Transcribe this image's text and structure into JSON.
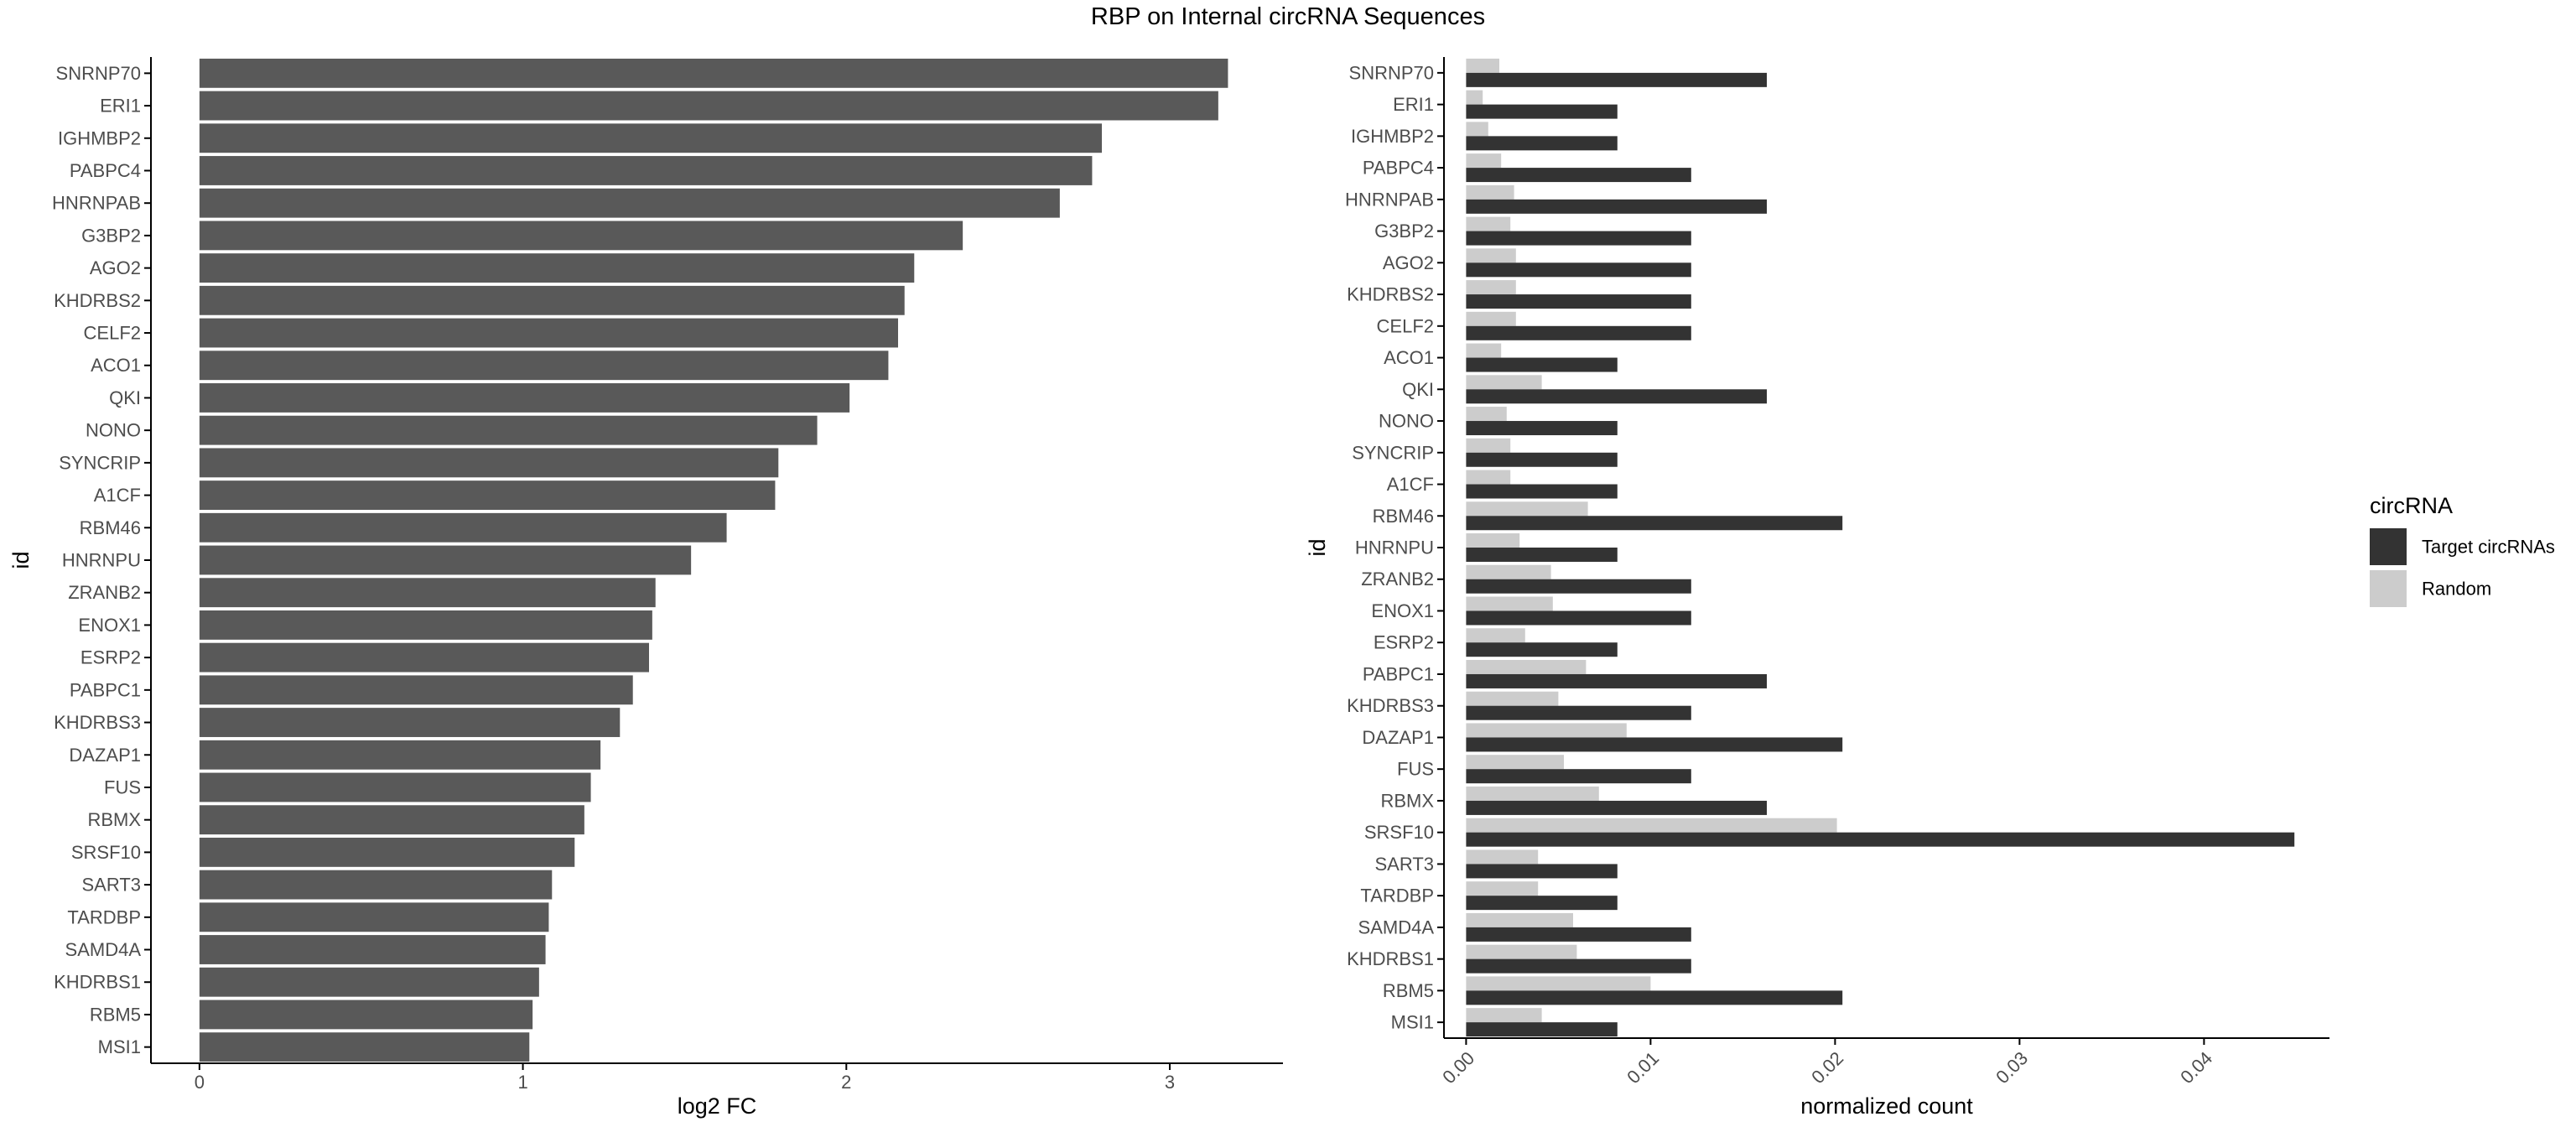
{
  "title": "RBP on Internal circRNA Sequences",
  "colors": {
    "fc_bar": "#595959",
    "target": "#333333",
    "random": "#cccccc",
    "axis": "#000000",
    "tick_text": "#4d4d4d"
  },
  "chart_data": [
    {
      "type": "bar",
      "orientation": "horizontal",
      "xlabel": "log2 FC",
      "ylabel": "id",
      "xlim": [
        -0.15,
        3.35
      ],
      "xticks": [
        "0",
        "1",
        "2",
        "3"
      ],
      "grid": false,
      "categories": [
        "SNRNP70",
        "ERI1",
        "IGHMBP2",
        "PABPC4",
        "HNRNPAB",
        "G3BP2",
        "AGO2",
        "KHDRBS2",
        "CELF2",
        "ACO1",
        "QKI",
        "NONO",
        "SYNCRIP",
        "A1CF",
        "RBM46",
        "HNRNPU",
        "ZRANB2",
        "ENOX1",
        "ESRP2",
        "PABPC1",
        "KHDRBS3",
        "DAZAP1",
        "FUS",
        "RBMX",
        "SRSF10",
        "SART3",
        "TARDBP",
        "SAMD4A",
        "KHDRBS1",
        "RBM5",
        "MSI1"
      ],
      "values": [
        3.18,
        3.15,
        2.79,
        2.76,
        2.66,
        2.36,
        2.21,
        2.18,
        2.16,
        2.13,
        2.01,
        1.91,
        1.79,
        1.78,
        1.63,
        1.52,
        1.41,
        1.4,
        1.39,
        1.34,
        1.3,
        1.24,
        1.21,
        1.19,
        1.16,
        1.09,
        1.08,
        1.07,
        1.05,
        1.03,
        1.02
      ]
    },
    {
      "type": "bar",
      "orientation": "horizontal",
      "xlabel": "normalized count",
      "ylabel": "id",
      "xlim": [
        -0.0012,
        0.0468
      ],
      "xticks": [
        "0.00",
        "0.01",
        "0.02",
        "0.03",
        "0.04"
      ],
      "grid": false,
      "legend": {
        "title": "circRNA",
        "position": "right"
      },
      "categories": [
        "SNRNP70",
        "ERI1",
        "IGHMBP2",
        "PABPC4",
        "HNRNPAB",
        "G3BP2",
        "AGO2",
        "KHDRBS2",
        "CELF2",
        "ACO1",
        "QKI",
        "NONO",
        "SYNCRIP",
        "A1CF",
        "RBM46",
        "HNRNPU",
        "ZRANB2",
        "ENOX1",
        "ESRP2",
        "PABPC1",
        "KHDRBS3",
        "DAZAP1",
        "FUS",
        "RBMX",
        "SRSF10",
        "SART3",
        "TARDBP",
        "SAMD4A",
        "KHDRBS1",
        "RBM5",
        "MSI1"
      ],
      "series": [
        {
          "name": "Target circRNAs",
          "values": [
            0.0163,
            0.0082,
            0.0082,
            0.0122,
            0.0163,
            0.0122,
            0.0122,
            0.0122,
            0.0122,
            0.0082,
            0.0163,
            0.0082,
            0.0082,
            0.0082,
            0.0204,
            0.0082,
            0.0122,
            0.0122,
            0.0082,
            0.0163,
            0.0122,
            0.0204,
            0.0122,
            0.0163,
            0.0449,
            0.0082,
            0.0082,
            0.0122,
            0.0122,
            0.0204,
            0.0082
          ]
        },
        {
          "name": "Random",
          "values": [
            0.0018,
            0.0009,
            0.0012,
            0.0019,
            0.0026,
            0.0024,
            0.0027,
            0.0027,
            0.0027,
            0.0019,
            0.0041,
            0.0022,
            0.0024,
            0.0024,
            0.0066,
            0.0029,
            0.0046,
            0.0047,
            0.0032,
            0.0065,
            0.005,
            0.0087,
            0.0053,
            0.0072,
            0.0201,
            0.0039,
            0.0039,
            0.0058,
            0.006,
            0.01,
            0.0041
          ]
        }
      ]
    }
  ]
}
